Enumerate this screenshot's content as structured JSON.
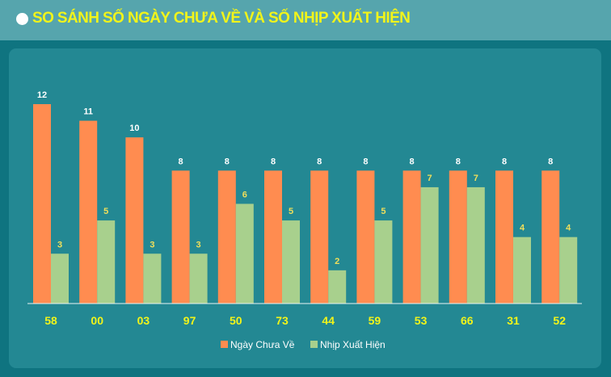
{
  "header": {
    "title": "SO SÁNH SỐ NGÀY CHƯA VỀ VÀ SỐ NHỊP XUẤT HIỆN",
    "bullet_icon": "circle-bullet-icon"
  },
  "colors": {
    "background": "#0f7480",
    "header_bg": "#56a5ad",
    "panel_bg": "#238893",
    "title": "#f1f41a",
    "series_days": "#ff8c50",
    "series_appear": "#a8d08d",
    "days_label": "#ffffff",
    "appear_label": "#f1df5a",
    "category_label": "#f1f41a"
  },
  "chart_data": {
    "type": "bar",
    "categories": [
      "58",
      "00",
      "03",
      "97",
      "50",
      "73",
      "44",
      "59",
      "53",
      "66",
      "31",
      "52"
    ],
    "series": [
      {
        "name": "Ngày Chưa Về",
        "values": [
          12,
          11,
          10,
          8,
          8,
          8,
          8,
          8,
          8,
          8,
          8,
          8
        ]
      },
      {
        "name": "Nhịp Xuất Hiện",
        "values": [
          3,
          5,
          3,
          3,
          6,
          5,
          2,
          5,
          7,
          7,
          4,
          4
        ]
      }
    ],
    "ylim": [
      0,
      12
    ],
    "grid": false,
    "legend": "bottom-center",
    "data_labels": true
  }
}
